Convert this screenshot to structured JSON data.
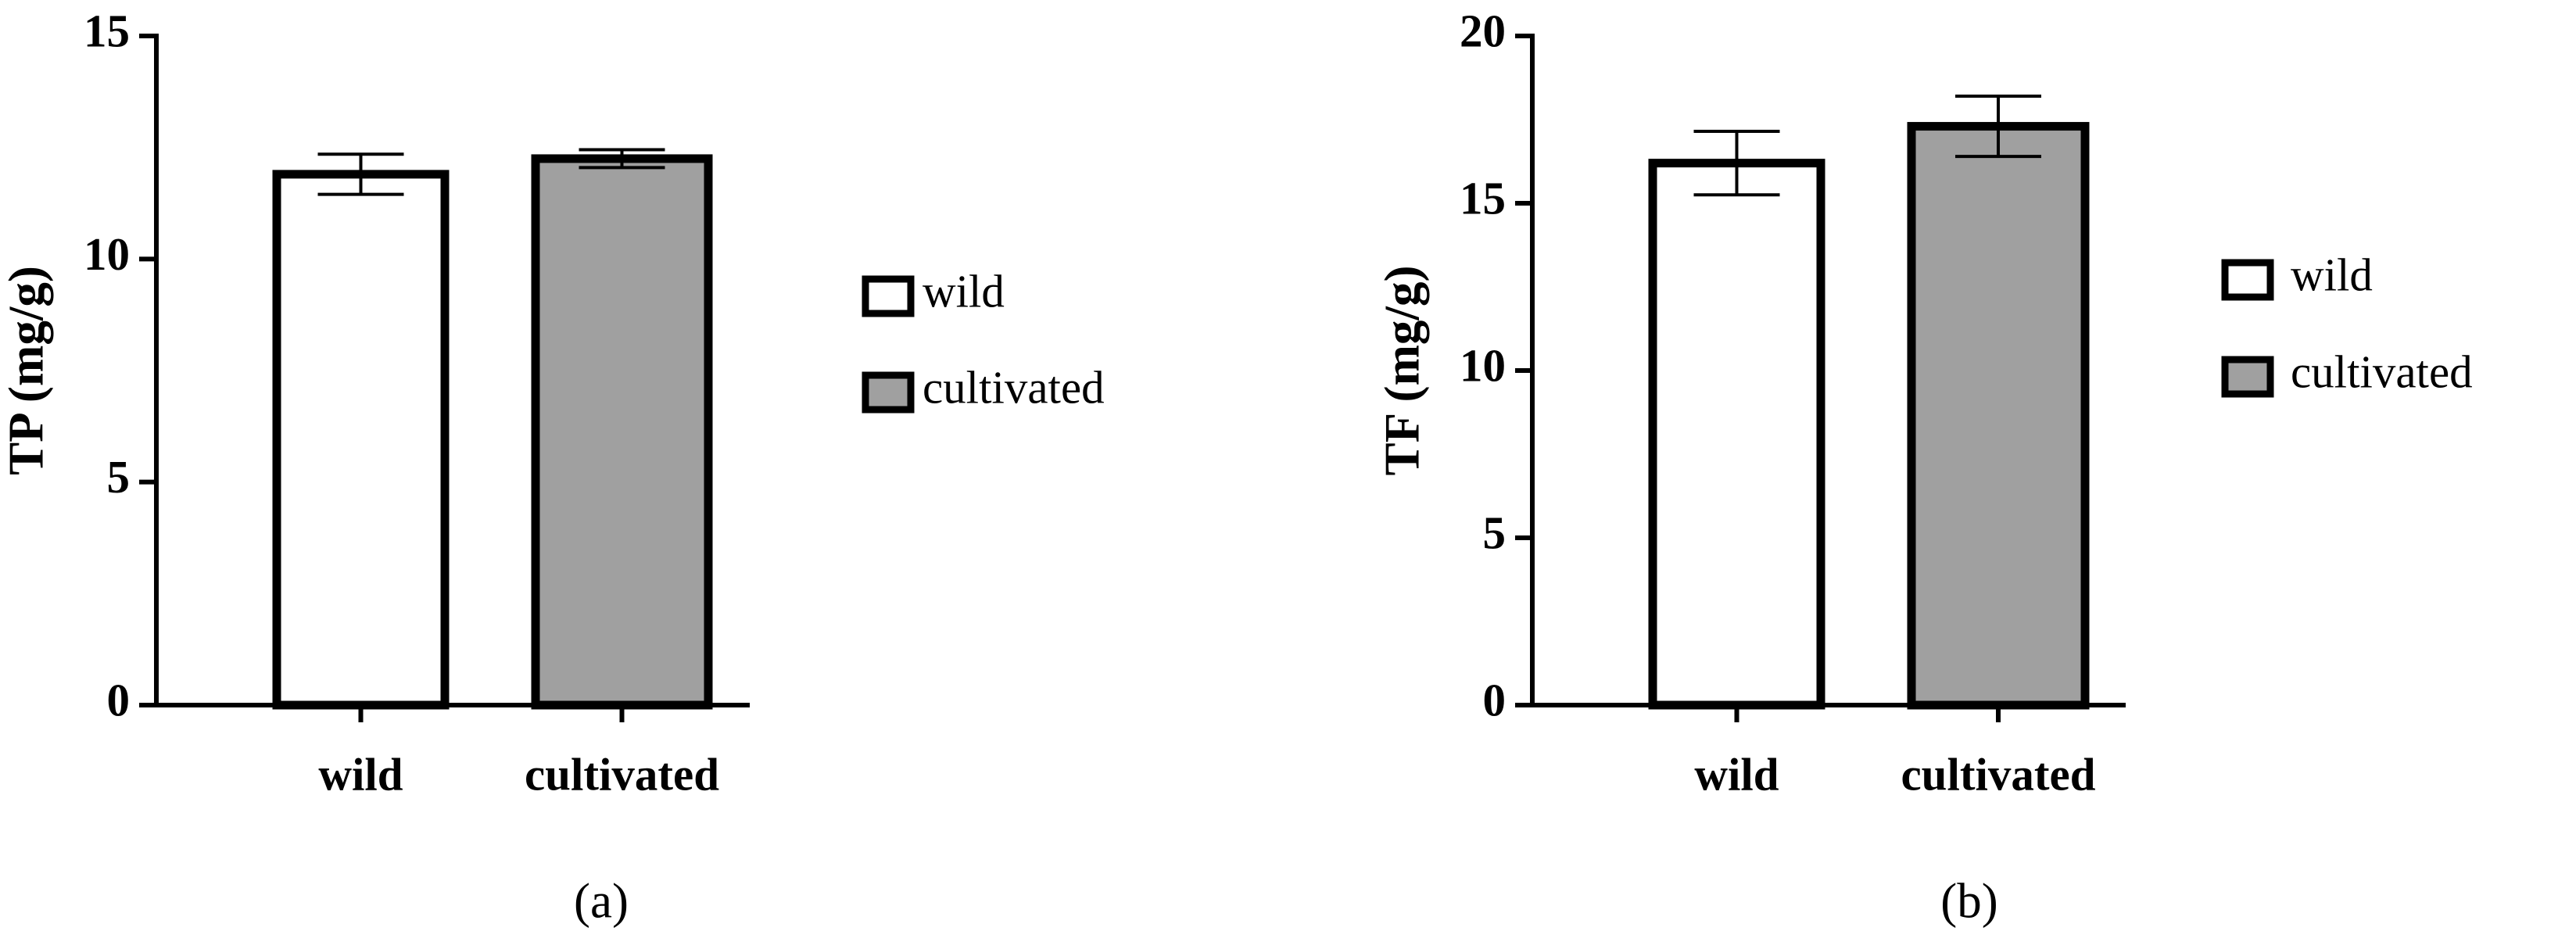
{
  "chart_data": [
    {
      "type": "bar",
      "ylabel": "TP (mg/g)",
      "categories": [
        "wild",
        "cultivated"
      ],
      "values": [
        11.9,
        12.25
      ],
      "errors": [
        0.45,
        0.2
      ],
      "colors": [
        "#ffffff",
        "#a0a0a0"
      ],
      "ylim": [
        0,
        15
      ],
      "yticks": [
        0,
        5,
        10,
        15
      ],
      "panel_label": "(a)"
    },
    {
      "type": "bar",
      "ylabel": "TF (mg/g)",
      "categories": [
        "wild",
        "cultivated"
      ],
      "values": [
        16.2,
        17.3
      ],
      "errors": [
        0.95,
        0.9
      ],
      "colors": [
        "#ffffff",
        "#a0a0a0"
      ],
      "ylim": [
        0,
        20
      ],
      "yticks": [
        0,
        5,
        10,
        15,
        20
      ],
      "panel_label": "(b)"
    }
  ]
}
